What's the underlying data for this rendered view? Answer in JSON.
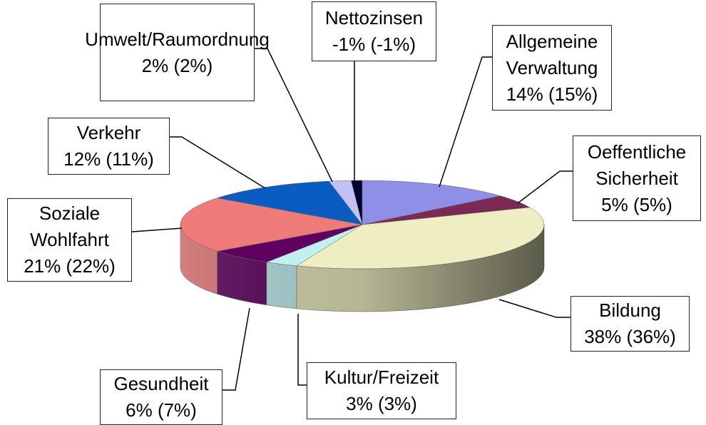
{
  "chart_data": {
    "type": "pie",
    "categories": [
      "Nettozinsen",
      "Allgemeine Verwaltung",
      "Oeffentliche Sicherheit",
      "Bildung",
      "Kultur/Freizeit",
      "Gesundheit",
      "Soziale Wohlfahrt",
      "Verkehr",
      "Umwelt/Raumordnung"
    ],
    "values": [
      -1,
      14,
      5,
      38,
      3,
      6,
      21,
      12,
      2
    ],
    "value_labels": [
      "-1% (-1%)",
      "14% (15%)",
      "5% (5%)",
      "38% (36%)",
      "3% (3%)",
      "6% (7%)",
      "21% (22%)",
      "12% (11%)",
      "2% (2%)"
    ],
    "colors": [
      "#00002e",
      "#8f8fe8",
      "#7a2a55",
      "#eeeec2",
      "#c2f0f0",
      "#600060",
      "#ee7a7a",
      "#0a5cc0",
      "#c2c2f2"
    ]
  }
}
